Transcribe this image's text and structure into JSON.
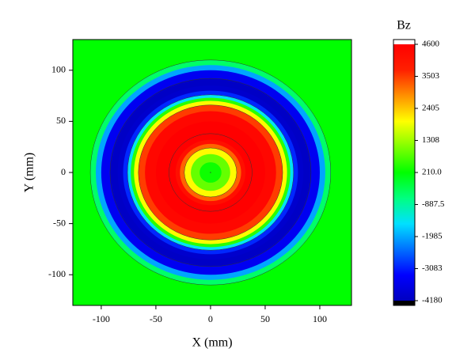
{
  "chart_data": {
    "type": "contour",
    "x_label": "X (mm)",
    "y_label": "Y (mm)",
    "colorbar_title": "Bz",
    "xlim": [
      -126,
      129
    ],
    "xticks": [
      -100,
      -50,
      0,
      50,
      100
    ],
    "ylim": [
      -130,
      130
    ],
    "yticks": [
      -100,
      -50,
      0,
      50,
      100
    ],
    "r": [
      0,
      10,
      18,
      24,
      28,
      32,
      38,
      50,
      60,
      66,
      70,
      73,
      76,
      80,
      85,
      92,
      100,
      105,
      110,
      116
    ],
    "values": [
      100,
      300,
      900,
      2000,
      3200,
      4200,
      4600,
      4600,
      4400,
      3500,
      2000,
      500,
      -1500,
      -3000,
      -4000,
      -4100,
      -3500,
      -2000,
      -500,
      210
    ],
    "zlim": [
      -4180,
      4600
    ],
    "zticks": [
      4600,
      3503,
      2405,
      1308,
      {
        "value": 210,
        "label": "210.0"
      },
      -887.5,
      -1985,
      -3083,
      -4180
    ],
    "colormap": [
      "#0000c0",
      "#0000ff",
      "#0070ff",
      "#00e0ff",
      "#00ff80",
      "#00ff00",
      "#80ff00",
      "#ffff00",
      "#ff9000",
      "#ff2000",
      "#ff0000"
    ]
  }
}
